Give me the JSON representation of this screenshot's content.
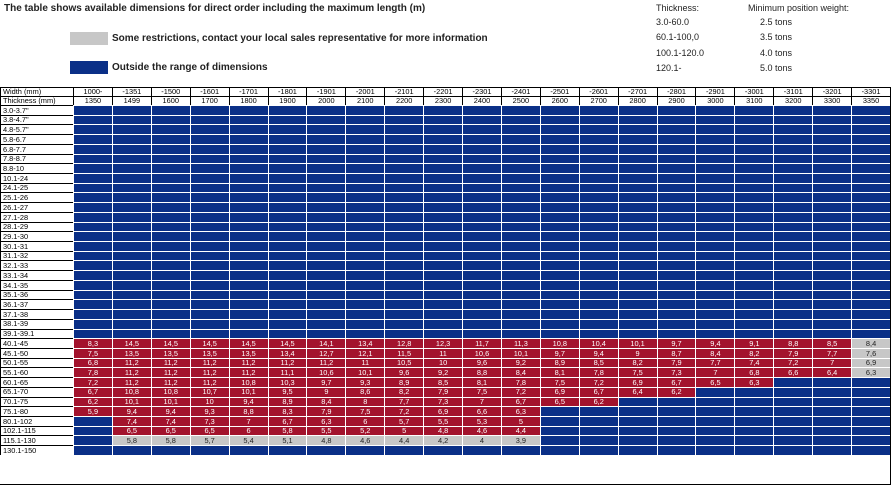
{
  "title": "The table shows available dimensions for direct order including the maximum length (m)",
  "legend": [
    {
      "label": "Some restrictions, contact your local sales representative for more information",
      "color": "#c7c7c7"
    },
    {
      "label": "Outside the range of dimensions",
      "color": "#0a2f87"
    }
  ],
  "colors": {
    "available": "#a3132d",
    "restricted": "#c7c7c7",
    "outside": "#0a2f87"
  },
  "weights": {
    "thickness_header": "Thickness:",
    "weight_header": "Minimum position weight:",
    "rows": [
      {
        "thickness": "3.0-60.0",
        "weight": "2.5 tons"
      },
      {
        "thickness": "60.1-100,0",
        "weight": "3.5 tons"
      },
      {
        "thickness": "100.1-120.0",
        "weight": "4.0 tons"
      },
      {
        "thickness": "120.1-",
        "weight": "5.0 tons"
      }
    ]
  },
  "table": {
    "width_label": "Width (mm)",
    "thickness_label": "Thickness (mm)",
    "width_top": [
      "1000-",
      "-1351",
      "-1500",
      "-1601",
      "-1701",
      "-1801",
      "-1901",
      "-2001",
      "-2101",
      "-2201",
      "-2301",
      "-2401",
      "-2501",
      "-2601",
      "-2701",
      "-2801",
      "-2901",
      "-3001",
      "-3101",
      "-3201",
      "-3301"
    ],
    "width_bottom": [
      "1350",
      "1499",
      "1600",
      "1700",
      "1800",
      "1900",
      "2000",
      "2100",
      "2200",
      "2300",
      "2400",
      "2500",
      "2600",
      "2700",
      "2800",
      "2900",
      "3000",
      "3100",
      "3200",
      "3300",
      "3350"
    ],
    "rows": [
      {
        "label": "3.0-3.7\"",
        "cells": []
      },
      {
        "label": "3.8-4.7\"",
        "cells": []
      },
      {
        "label": "4.8-5.7\"",
        "cells": []
      },
      {
        "label": "5.8-6.7",
        "cells": []
      },
      {
        "label": "6.8-7.7",
        "cells": []
      },
      {
        "label": "7.8-8.7",
        "cells": []
      },
      {
        "label": "8.8-10",
        "cells": []
      },
      {
        "label": "10.1-24",
        "cells": []
      },
      {
        "label": "24.1-25",
        "cells": []
      },
      {
        "label": "25.1-26",
        "cells": []
      },
      {
        "label": "26.1-27",
        "cells": []
      },
      {
        "label": "27.1-28",
        "cells": []
      },
      {
        "label": "28.1-29",
        "cells": []
      },
      {
        "label": "29.1-30",
        "cells": []
      },
      {
        "label": "30.1-31",
        "cells": []
      },
      {
        "label": "31.1-32",
        "cells": []
      },
      {
        "label": "32.1-33",
        "cells": []
      },
      {
        "label": "33.1-34",
        "cells": []
      },
      {
        "label": "34.1-35",
        "cells": []
      },
      {
        "label": "35.1-36",
        "cells": []
      },
      {
        "label": "36.1-37",
        "cells": []
      },
      {
        "label": "37.1-38",
        "cells": []
      },
      {
        "label": "38.1-39",
        "cells": []
      },
      {
        "label": "39.1-39.1",
        "cells": []
      },
      {
        "label": "40.1-45",
        "cells": [
          [
            "8,3",
            "r"
          ],
          [
            "14,5",
            "r"
          ],
          [
            "14,5",
            "r"
          ],
          [
            "14,5",
            "r"
          ],
          [
            "14,5",
            "r"
          ],
          [
            "14,5",
            "r"
          ],
          [
            "14,1",
            "r"
          ],
          [
            "13,4",
            "r"
          ],
          [
            "12,8",
            "r"
          ],
          [
            "12,3",
            "r"
          ],
          [
            "11,7",
            "r"
          ],
          [
            "11,3",
            "r"
          ],
          [
            "10,8",
            "r"
          ],
          [
            "10,4",
            "r"
          ],
          [
            "10,1",
            "r"
          ],
          [
            "9,7",
            "r"
          ],
          [
            "9,4",
            "r"
          ],
          [
            "9,1",
            "r"
          ],
          [
            "8,8",
            "r"
          ],
          [
            "8,5",
            "r"
          ],
          [
            "8,4",
            "g"
          ]
        ]
      },
      {
        "label": "45.1-50",
        "cells": [
          [
            "7,5",
            "r"
          ],
          [
            "13,5",
            "r"
          ],
          [
            "13,5",
            "r"
          ],
          [
            "13,5",
            "r"
          ],
          [
            "13,5",
            "r"
          ],
          [
            "13,4",
            "r"
          ],
          [
            "12,7",
            "r"
          ],
          [
            "12,1",
            "r"
          ],
          [
            "11,5",
            "r"
          ],
          [
            "11",
            "r"
          ],
          [
            "10,6",
            "r"
          ],
          [
            "10,1",
            "r"
          ],
          [
            "9,7",
            "r"
          ],
          [
            "9,4",
            "r"
          ],
          [
            "9",
            "r"
          ],
          [
            "8,7",
            "r"
          ],
          [
            "8,4",
            "r"
          ],
          [
            "8,2",
            "r"
          ],
          [
            "7,9",
            "r"
          ],
          [
            "7,7",
            "r"
          ],
          [
            "7,6",
            "g"
          ]
        ]
      },
      {
        "label": "50.1-55",
        "cells": [
          [
            "6,8",
            "r"
          ],
          [
            "11,2",
            "r"
          ],
          [
            "11,2",
            "r"
          ],
          [
            "11,2",
            "r"
          ],
          [
            "11,2",
            "r"
          ],
          [
            "11,2",
            "r"
          ],
          [
            "11,2",
            "r"
          ],
          [
            "11",
            "r"
          ],
          [
            "10,5",
            "r"
          ],
          [
            "10",
            "r"
          ],
          [
            "9,6",
            "r"
          ],
          [
            "9,2",
            "r"
          ],
          [
            "8,9",
            "r"
          ],
          [
            "8,5",
            "r"
          ],
          [
            "8,2",
            "r"
          ],
          [
            "7,9",
            "r"
          ],
          [
            "7,7",
            "r"
          ],
          [
            "7,4",
            "r"
          ],
          [
            "7,2",
            "r"
          ],
          [
            "7",
            "r"
          ],
          [
            "6,9",
            "g"
          ]
        ]
      },
      {
        "label": "55.1-60",
        "cells": [
          [
            "7,8",
            "r"
          ],
          [
            "11,2",
            "r"
          ],
          [
            "11,2",
            "r"
          ],
          [
            "11,2",
            "r"
          ],
          [
            "11,2",
            "r"
          ],
          [
            "11,1",
            "r"
          ],
          [
            "10,6",
            "r"
          ],
          [
            "10,1",
            "r"
          ],
          [
            "9,6",
            "r"
          ],
          [
            "9,2",
            "r"
          ],
          [
            "8,8",
            "r"
          ],
          [
            "8,4",
            "r"
          ],
          [
            "8,1",
            "r"
          ],
          [
            "7,8",
            "r"
          ],
          [
            "7,5",
            "r"
          ],
          [
            "7,3",
            "r"
          ],
          [
            "7",
            "r"
          ],
          [
            "6,8",
            "r"
          ],
          [
            "6,6",
            "r"
          ],
          [
            "6,4",
            "r"
          ],
          [
            "6,3",
            "g"
          ]
        ]
      },
      {
        "label": "60.1-65",
        "cells": [
          [
            "7,2",
            "r"
          ],
          [
            "11,2",
            "r"
          ],
          [
            "11,2",
            "r"
          ],
          [
            "11,2",
            "r"
          ],
          [
            "10,8",
            "r"
          ],
          [
            "10,3",
            "r"
          ],
          [
            "9,7",
            "r"
          ],
          [
            "9,3",
            "r"
          ],
          [
            "8,9",
            "r"
          ],
          [
            "8,5",
            "r"
          ],
          [
            "8,1",
            "r"
          ],
          [
            "7,8",
            "r"
          ],
          [
            "7,5",
            "r"
          ],
          [
            "7,2",
            "r"
          ],
          [
            "6,9",
            "r"
          ],
          [
            "6,7",
            "r"
          ],
          [
            "6,5",
            "r"
          ],
          [
            "6,3",
            "r"
          ]
        ]
      },
      {
        "label": "65.1-70",
        "cells": [
          [
            "6,7",
            "r"
          ],
          [
            "10,8",
            "r"
          ],
          [
            "10,8",
            "r"
          ],
          [
            "10,7",
            "r"
          ],
          [
            "10,1",
            "r"
          ],
          [
            "9,5",
            "r"
          ],
          [
            "9",
            "r"
          ],
          [
            "8,6",
            "r"
          ],
          [
            "8,2",
            "r"
          ],
          [
            "7,9",
            "r"
          ],
          [
            "7,5",
            "r"
          ],
          [
            "7,2",
            "r"
          ],
          [
            "6,9",
            "r"
          ],
          [
            "6,7",
            "r"
          ],
          [
            "6,4",
            "r"
          ],
          [
            "6,2",
            "r"
          ]
        ]
      },
      {
        "label": "70.1-75",
        "cells": [
          [
            "6,2",
            "r"
          ],
          [
            "10,1",
            "r"
          ],
          [
            "10,1",
            "r"
          ],
          [
            "10",
            "r"
          ],
          [
            "9,4",
            "r"
          ],
          [
            "8,9",
            "r"
          ],
          [
            "8,4",
            "r"
          ],
          [
            "8",
            "r"
          ],
          [
            "7,7",
            "r"
          ],
          [
            "7,3",
            "r"
          ],
          [
            "7",
            "r"
          ],
          [
            "6,7",
            "r"
          ],
          [
            "6,5",
            "r"
          ],
          [
            "6,2",
            "r"
          ]
        ]
      },
      {
        "label": "75.1-80",
        "cells": [
          [
            "5,9",
            "r"
          ],
          [
            "9,4",
            "r"
          ],
          [
            "9,4",
            "r"
          ],
          [
            "9,3",
            "r"
          ],
          [
            "8,8",
            "r"
          ],
          [
            "8,3",
            "r"
          ],
          [
            "7,9",
            "r"
          ],
          [
            "7,5",
            "r"
          ],
          [
            "7,2",
            "r"
          ],
          [
            "6,9",
            "r"
          ],
          [
            "6,6",
            "r"
          ],
          [
            "6,3",
            "r"
          ]
        ]
      },
      {
        "label": "80.1-102",
        "cells": [
          [
            "",
            "b"
          ],
          [
            "7,4",
            "r"
          ],
          [
            "7,4",
            "r"
          ],
          [
            "7,3",
            "r"
          ],
          [
            "7",
            "r"
          ],
          [
            "6,7",
            "r"
          ],
          [
            "6,3",
            "r"
          ],
          [
            "6",
            "r"
          ],
          [
            "5,7",
            "r"
          ],
          [
            "5,5",
            "r"
          ],
          [
            "5,3",
            "r"
          ],
          [
            "5",
            "r"
          ]
        ]
      },
      {
        "label": "102.1-115",
        "cells": [
          [
            "",
            "b"
          ],
          [
            "6,5",
            "r"
          ],
          [
            "6,5",
            "r"
          ],
          [
            "6,5",
            "r"
          ],
          [
            "6",
            "r"
          ],
          [
            "5,8",
            "r"
          ],
          [
            "5,5",
            "r"
          ],
          [
            "5,2",
            "r"
          ],
          [
            "5",
            "r"
          ],
          [
            "4,8",
            "r"
          ],
          [
            "4,6",
            "r"
          ],
          [
            "4,4",
            "r"
          ]
        ]
      },
      {
        "label": "115.1-130",
        "cells": [
          [
            "",
            "b"
          ],
          [
            "5,8",
            "g"
          ],
          [
            "5,8",
            "g"
          ],
          [
            "5,7",
            "g"
          ],
          [
            "5,4",
            "g"
          ],
          [
            "5,1",
            "g"
          ],
          [
            "4,8",
            "g"
          ],
          [
            "4,6",
            "g"
          ],
          [
            "4,4",
            "g"
          ],
          [
            "4,2",
            "g"
          ],
          [
            "4",
            "g"
          ],
          [
            "3,9",
            "g"
          ]
        ]
      },
      {
        "label": "130.1-150",
        "cells": []
      }
    ]
  }
}
